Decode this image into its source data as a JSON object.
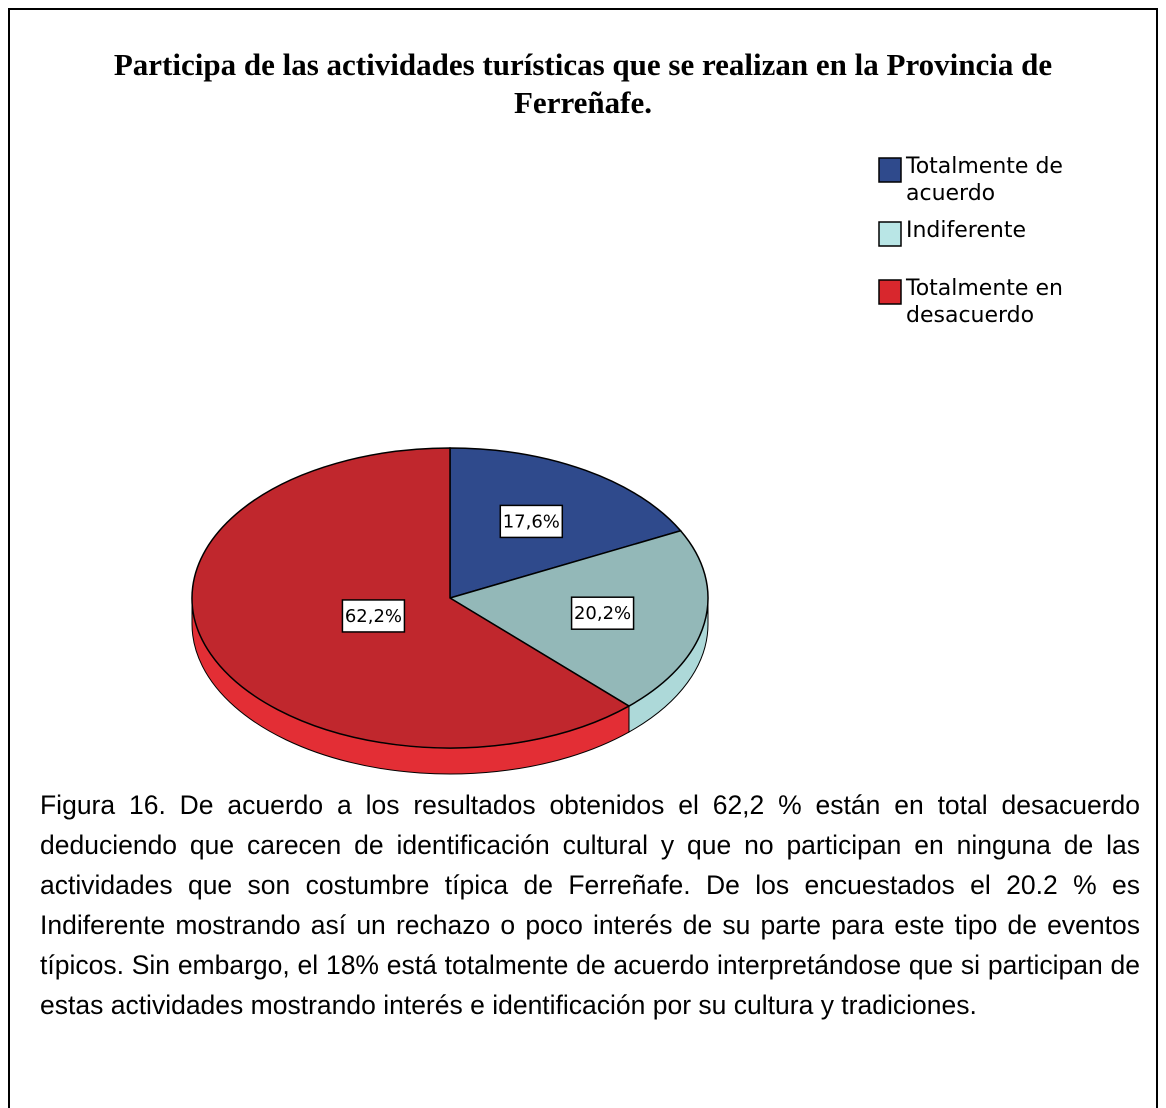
{
  "chart_data": {
    "type": "pie",
    "title": "Participa de las actividades turísticas que se realizan en la Provincia de Ferreñafe.",
    "categories": [
      "Totalmente de acuerdo",
      "Indiferente",
      "Totalmente en desacuerdo"
    ],
    "values": [
      17.6,
      20.2,
      62.2
    ],
    "value_labels": [
      "17,6%",
      "20,2%",
      "62,2%"
    ],
    "colors": [
      "#2f4a8c",
      "#93b8b8",
      "#c0272d"
    ],
    "legend_colors": [
      "#2f4a8c",
      "#b9e6e6",
      "#d8272d"
    ],
    "legend": "upper right"
  },
  "caption": "Figura 16. De acuerdo a los resultados obtenidos el 62,2 % están en total desacuerdo deduciendo que carecen de identificación cultural y que no participan en ninguna de las actividades que son costumbre típica de Ferreñafe. De los encuestados el 20.2 % es Indiferente mostrando así un rechazo o poco interés de su parte para este tipo de eventos típicos. Sin embargo, el 18% está totalmente de acuerdo interpretándose que si participan de estas actividades mostrando interés e identificación por su cultura y tradiciones."
}
